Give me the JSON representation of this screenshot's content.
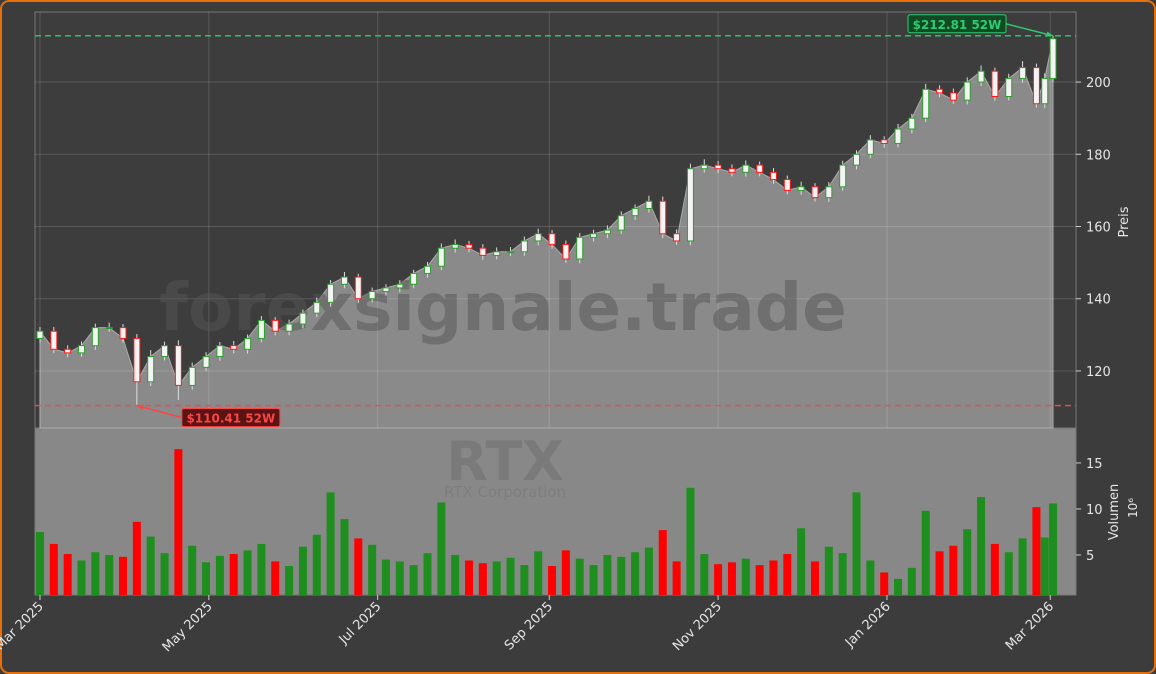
{
  "chart_data": {
    "type": "candlestick",
    "x": [
      0,
      5,
      10,
      15,
      20,
      25,
      30,
      35,
      40,
      45,
      50,
      55,
      60,
      65,
      70,
      75,
      80,
      85,
      90,
      95,
      100,
      105,
      110,
      115,
      120,
      125,
      130,
      135,
      140,
      145,
      150,
      155,
      160,
      165,
      170,
      175,
      180,
      185,
      190,
      195,
      200,
      205,
      210,
      215,
      220,
      225,
      230,
      235,
      240,
      245,
      250,
      255,
      260,
      265,
      270,
      275,
      280,
      285,
      290,
      295,
      300,
      305,
      310,
      315,
      320,
      325,
      330,
      335,
      340,
      345,
      350,
      355,
      360,
      363,
      366
    ],
    "open": [
      129,
      131,
      126,
      125,
      127,
      132,
      132,
      129,
      117,
      124,
      127,
      116,
      121,
      124,
      127,
      126,
      129,
      134,
      131,
      133,
      136,
      139,
      144,
      146,
      140,
      142,
      143,
      144,
      147,
      149,
      154,
      155,
      154,
      152,
      153,
      153,
      156,
      158,
      155,
      151,
      157,
      158,
      159,
      163,
      165,
      167,
      158,
      156,
      176,
      177,
      176,
      175,
      177,
      175,
      173,
      170,
      171,
      168,
      171,
      177,
      180,
      184,
      183,
      187,
      190,
      198,
      197,
      195,
      200,
      203,
      196,
      201,
      204,
      194,
      201
    ],
    "high": [
      132.2,
      132.2,
      127.1,
      128.2,
      133.1,
      133.4,
      133.0,
      130.2,
      125.8,
      128.1,
      128.5,
      122.3,
      125.2,
      128.0,
      128.3,
      130.1,
      135.2,
      134.9,
      134.2,
      137.0,
      140.3,
      145.2,
      147.4,
      146.9,
      143.1,
      144.0,
      145.1,
      148.0,
      150.2,
      155.3,
      156.4,
      156.0,
      155.1,
      154.2,
      154.3,
      157.2,
      159.4,
      159.0,
      156.1,
      158.2,
      159.1,
      160.3,
      164.2,
      166.1,
      168.5,
      168.3,
      159.2,
      177.4,
      178.6,
      178.1,
      177.2,
      178.3,
      178.0,
      176.2,
      174.1,
      172.4,
      172.0,
      172.3,
      178.2,
      181.1,
      185.3,
      185.0,
      188.4,
      191.2,
      199.5,
      199.1,
      198.2,
      201.3,
      204.6,
      204.0,
      202.3,
      205.8,
      205.1,
      202.4,
      212.81
    ],
    "low": [
      127.8,
      124.9,
      123.8,
      123.9,
      125.8,
      130.8,
      127.9,
      110.41,
      115.8,
      122.9,
      112.0,
      114.8,
      119.9,
      122.8,
      124.9,
      124.8,
      127.9,
      129.8,
      129.9,
      131.8,
      134.9,
      137.8,
      142.9,
      138.8,
      139.0,
      140.9,
      141.8,
      142.9,
      145.8,
      147.9,
      152.8,
      152.9,
      150.8,
      150.9,
      151.8,
      151.9,
      154.8,
      153.8,
      149.9,
      149.8,
      155.9,
      156.8,
      157.9,
      161.8,
      163.9,
      156.8,
      154.9,
      154.8,
      174.9,
      174.8,
      173.9,
      173.8,
      173.9,
      171.8,
      168.9,
      168.8,
      166.9,
      166.8,
      169.9,
      175.8,
      178.9,
      181.8,
      181.9,
      185.8,
      188.9,
      195.8,
      193.9,
      193.8,
      198.9,
      194.8,
      194.9,
      199.8,
      192.9,
      192.8,
      200.0
    ],
    "close": [
      131,
      126,
      125,
      127,
      132,
      132,
      129,
      117,
      124,
      127,
      116,
      121,
      124,
      127,
      126,
      129,
      134,
      131,
      133,
      136,
      139,
      144,
      146,
      140,
      142,
      143,
      144,
      147,
      149,
      154,
      155,
      154,
      152,
      153,
      153,
      156,
      158,
      155,
      151,
      157,
      158,
      159,
      163,
      165,
      167,
      158,
      156,
      176,
      177,
      176,
      175,
      177,
      175,
      173,
      170,
      171,
      168,
      171,
      177,
      180,
      184,
      183,
      187,
      190,
      198,
      197,
      195,
      200,
      203,
      196,
      201,
      204,
      194,
      201,
      212
    ],
    "volume": [
      7.5,
      6.2,
      5.1,
      4.4,
      5.3,
      5.0,
      4.8,
      8.6,
      7.0,
      5.2,
      16.5,
      6.0,
      4.2,
      4.9,
      5.1,
      5.5,
      6.2,
      4.3,
      3.8,
      5.9,
      7.2,
      11.8,
      8.9,
      6.8,
      6.1,
      4.5,
      4.3,
      3.9,
      5.2,
      10.7,
      5.0,
      4.4,
      4.1,
      4.3,
      4.7,
      3.9,
      5.4,
      3.8,
      5.5,
      4.6,
      3.9,
      5.0,
      4.8,
      5.3,
      5.8,
      7.7,
      4.3,
      12.3,
      5.1,
      4.0,
      4.2,
      4.6,
      3.9,
      4.4,
      5.1,
      7.9,
      4.3,
      5.9,
      5.2,
      11.8,
      4.4,
      3.1,
      2.4,
      3.6,
      9.8,
      5.4,
      6.0,
      7.8,
      11.3,
      6.2,
      5.3,
      6.8,
      10.2,
      6.9,
      10.6
    ],
    "up_color": "#2ca02c",
    "down_color": "#ff1a1a",
    "volume_up_color": "#1e8f1e",
    "volume_down_color": "#ff0000",
    "area_color": "#8a8a8a",
    "xlim": [
      -1.8,
      374.3
    ],
    "xticks": [
      {
        "value": 0,
        "label": "Mar 2025"
      },
      {
        "value": 61,
        "label": "May 2025"
      },
      {
        "value": 122,
        "label": "Jul 2025"
      },
      {
        "value": 184,
        "label": "Sep 2025"
      },
      {
        "value": 245,
        "label": "Nov 2025"
      },
      {
        "value": 306,
        "label": "Jan 2026"
      },
      {
        "value": 365,
        "label": "Mar 2026"
      }
    ],
    "ylim": [
      104.2,
      219.4
    ],
    "yticks": [
      120,
      140,
      160,
      180,
      200
    ],
    "ylabel": "Preis",
    "volume_ylim": [
      0.65,
      18.8
    ],
    "volume_yticks": [
      5,
      10,
      15
    ],
    "volume_label": "Volumen",
    "volume_unit": "10⁶",
    "grid": true,
    "annotations": [
      {
        "text": "$212.81 52W",
        "value": 212.81,
        "color": "#2ecc71"
      },
      {
        "text": "$110.41 52W",
        "value": 110.41,
        "color": "#ff4444"
      }
    ],
    "watermark": "forexsignale.trade",
    "symbol": "RTX",
    "company": "RTX Corporation"
  }
}
